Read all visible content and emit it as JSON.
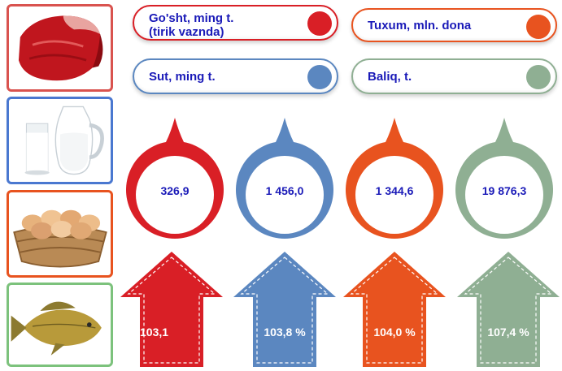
{
  "legend": [
    {
      "label": "Go'sht, ming t.\n(tirik vaznda)",
      "color": "#d91f26"
    },
    {
      "label": "Tuxum, mln. dona",
      "color": "#e8531f"
    },
    {
      "label": "Sut, ming t.",
      "color": "#5b87c0"
    },
    {
      "label": "Baliq, t.",
      "color": "#8faf93"
    }
  ],
  "indicators": [
    {
      "value": "326,9",
      "percent": "103,1",
      "color": "#d91f26",
      "icon": "meat-icon"
    },
    {
      "value": "1 456,0",
      "percent": "103,8 %",
      "color": "#5b87c0",
      "icon": "milk-icon"
    },
    {
      "value": "1 344,6",
      "percent": "104,0 %",
      "color": "#e8531f",
      "icon": "eggs-icon"
    },
    {
      "value": "19 876,3",
      "percent": "107,4 %",
      "color": "#8faf93",
      "icon": "fish-icon"
    }
  ],
  "tiles": [
    {
      "icon": "meat-icon",
      "border": "#d9534f"
    },
    {
      "icon": "milk-icon",
      "border": "#4a78d0"
    },
    {
      "icon": "eggs-icon",
      "border": "#e8531f"
    },
    {
      "icon": "fish-icon",
      "border": "#7cc27c"
    }
  ]
}
